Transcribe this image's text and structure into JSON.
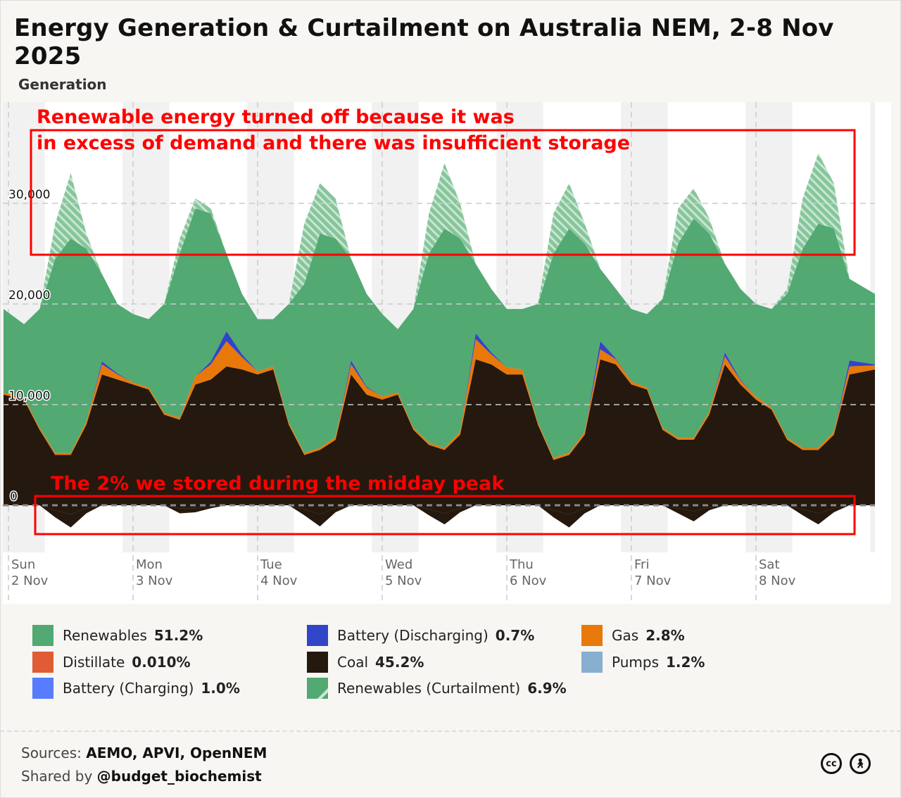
{
  "title": "Energy Generation & Curtailment on Australia NEM, 2-8 Nov 2025",
  "panel_label": "Generation",
  "annotations": {
    "top_line1": "Renewable energy turned off because it was",
    "top_line2": "in excess of demand and there was insufficient storage",
    "bottom": "The 2% we stored during the midday peak"
  },
  "legend": [
    {
      "label": "Renewables",
      "pct": "51.2%",
      "color": "#52a972"
    },
    {
      "label": "Battery (Discharging)",
      "pct": "0.7%",
      "color": "#3244c7"
    },
    {
      "label": "Gas",
      "pct": "2.8%",
      "color": "#e87809"
    },
    {
      "label": "Distillate",
      "pct": "0.010%",
      "color": "#e15c34"
    },
    {
      "label": "Coal",
      "pct": "45.2%",
      "color": "#25180e"
    },
    {
      "label": "Pumps",
      "pct": "1.2%",
      "color": "#88aed0"
    },
    {
      "label": "Battery (Charging)",
      "pct": "1.0%",
      "color": "#577cff"
    },
    {
      "label": "Renewables (Curtailment)",
      "pct": "6.9%",
      "color": "#52a972"
    }
  ],
  "footer": {
    "sources_label": "Sources:",
    "sources": "AEMO, APVI, OpenNEM",
    "shared_label": "Shared by",
    "shared": "@budget_biochemist",
    "license_icons": [
      "cc-icon",
      "attribution-icon"
    ]
  },
  "chart_data": {
    "type": "area",
    "stacked": true,
    "title": "Energy Generation & Curtailment on Australia NEM, 2-8 Nov 2025",
    "ylabel": "",
    "xlabel": "",
    "ylim": [
      -2500,
      35500
    ],
    "yticks": [
      {
        "v": 0,
        "label": "0"
      },
      {
        "v": 10000,
        "label": "10,000"
      },
      {
        "v": 20000,
        "label": "20,000"
      },
      {
        "v": 30000,
        "label": "30,000"
      }
    ],
    "xticks": [
      {
        "d": "Sun",
        "n": "2 Nov"
      },
      {
        "d": "Mon",
        "n": "3 Nov"
      },
      {
        "d": "Tue",
        "n": "4 Nov"
      },
      {
        "d": "Wed",
        "n": "5 Nov"
      },
      {
        "d": "Thu",
        "n": "6 Nov"
      },
      {
        "d": "Fri",
        "n": "7 Nov"
      },
      {
        "d": "Sat",
        "n": "8 Nov"
      }
    ],
    "x_start": "2025-11-02T00:00",
    "x_step_hours": 3,
    "grid": true,
    "series": [
      {
        "name": "Coal",
        "color": "#25180e",
        "values": [
          11000,
          10500,
          7500,
          5000,
          5000,
          8000,
          13000,
          12500,
          12000,
          11500,
          9000,
          8500,
          12000,
          12500,
          13800,
          13500,
          13000,
          13500,
          8000,
          5000,
          5500,
          6500,
          13000,
          11000,
          10500,
          11000,
          7500,
          6000,
          5500,
          7000,
          14500,
          14000,
          13000,
          13000,
          8000,
          4500,
          5000,
          7000,
          14500,
          14000,
          12000,
          11500,
          7500,
          6500,
          6500,
          9000,
          14000,
          12000,
          10500,
          9500,
          6500,
          5500,
          5500,
          7000,
          13000,
          13500
        ]
      },
      {
        "name": "Gas",
        "color": "#e87809",
        "values": [
          200,
          200,
          200,
          200,
          200,
          300,
          1000,
          500,
          200,
          200,
          200,
          200,
          800,
          1500,
          2500,
          1200,
          300,
          300,
          200,
          200,
          200,
          300,
          1000,
          700,
          300,
          200,
          200,
          200,
          200,
          300,
          2000,
          1000,
          700,
          500,
          200,
          200,
          200,
          300,
          1000,
          500,
          300,
          200,
          200,
          200,
          200,
          300,
          800,
          400,
          300,
          200,
          200,
          200,
          200,
          300,
          800,
          400
        ]
      },
      {
        "name": "Battery (Discharging)",
        "color": "#3244c7",
        "values": [
          0,
          0,
          0,
          0,
          0,
          0,
          300,
          100,
          0,
          0,
          0,
          0,
          0,
          300,
          1000,
          300,
          0,
          0,
          0,
          0,
          0,
          0,
          400,
          100,
          0,
          0,
          0,
          0,
          0,
          0,
          600,
          200,
          0,
          0,
          0,
          0,
          0,
          0,
          800,
          100,
          0,
          0,
          0,
          0,
          0,
          0,
          400,
          100,
          0,
          0,
          0,
          0,
          0,
          0,
          600,
          100
        ]
      },
      {
        "name": "Renewables",
        "color": "#52a972",
        "values": [
          8300,
          7300,
          11800,
          19300,
          21300,
          17200,
          8700,
          6900,
          6800,
          6800,
          10800,
          16300,
          16700,
          14700,
          7700,
          6000,
          5200,
          4700,
          11800,
          16800,
          21300,
          19700,
          10100,
          9200,
          8200,
          6300,
          11800,
          18800,
          21800,
          19200,
          6900,
          6300,
          5800,
          6000,
          11800,
          20300,
          22300,
          18700,
          7200,
          6900,
          7200,
          7300,
          12800,
          19300,
          21800,
          17700,
          8800,
          9000,
          9200,
          9800,
          14300,
          19800,
          22300,
          20200,
          8100,
          7000
        ]
      },
      {
        "name": "Renewables (Curtailment)",
        "color": "#52a972",
        "hatched": true,
        "values": [
          0,
          0,
          0,
          3500,
          6500,
          1500,
          0,
          0,
          0,
          0,
          0,
          1500,
          1000,
          500,
          0,
          0,
          0,
          0,
          0,
          6000,
          5000,
          4000,
          0,
          0,
          0,
          0,
          0,
          4000,
          6500,
          3500,
          0,
          0,
          0,
          0,
          0,
          4000,
          4500,
          2000,
          0,
          0,
          0,
          0,
          0,
          3500,
          3000,
          1500,
          0,
          0,
          0,
          0,
          500,
          5000,
          7000,
          4500,
          0,
          0
        ]
      },
      {
        "name": "Pumps",
        "color": "#88aed0",
        "values": [
          0,
          0,
          0,
          -500,
          -900,
          -300,
          0,
          0,
          0,
          0,
          0,
          -300,
          -300,
          -100,
          0,
          0,
          0,
          0,
          0,
          -400,
          -900,
          -300,
          0,
          0,
          0,
          0,
          0,
          -400,
          -800,
          -300,
          0,
          0,
          0,
          0,
          0,
          -500,
          -900,
          -300,
          0,
          0,
          0,
          0,
          0,
          -300,
          -600,
          -200,
          0,
          0,
          0,
          0,
          0,
          -400,
          -800,
          -300,
          0,
          0
        ]
      },
      {
        "name": "Battery (Charging)",
        "color": "#577cff",
        "values": [
          0,
          0,
          0,
          -700,
          -1300,
          -500,
          0,
          0,
          0,
          0,
          0,
          -500,
          -400,
          -200,
          0,
          0,
          0,
          0,
          0,
          -600,
          -1200,
          -400,
          0,
          0,
          0,
          0,
          0,
          -600,
          -1100,
          -400,
          0,
          0,
          0,
          0,
          0,
          -700,
          -1300,
          -500,
          0,
          0,
          0,
          0,
          0,
          -500,
          -1000,
          -300,
          0,
          0,
          0,
          0,
          0,
          -600,
          -1100,
          -400,
          0,
          0
        ]
      }
    ]
  }
}
